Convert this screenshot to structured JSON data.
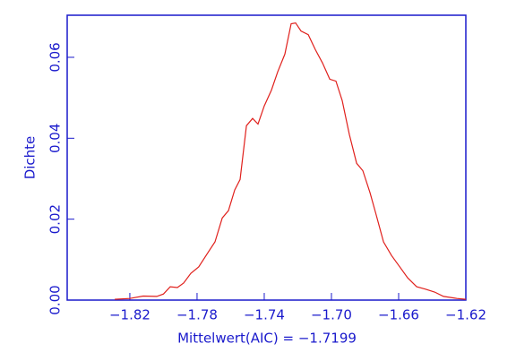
{
  "chart_data": {
    "type": "line",
    "x_label": "Mittelwert(AIC) = −1.7199",
    "y_label": "Dichte",
    "xlim": [
      -1.8573,
      -1.62
    ],
    "ylim": [
      0,
      0.0704
    ],
    "xticks": [
      {
        "value": -1.82,
        "label": "−1.82"
      },
      {
        "value": -1.78,
        "label": "−1.78"
      },
      {
        "value": -1.74,
        "label": "−1.74"
      },
      {
        "value": -1.7,
        "label": "−1.70"
      },
      {
        "value": -1.66,
        "label": "−1.66"
      },
      {
        "value": -1.62,
        "label": "−1.62"
      }
    ],
    "yticks": [
      {
        "value": 0,
        "label": "0.00"
      },
      {
        "value": 0.02,
        "label": "0.02"
      },
      {
        "value": 0.04,
        "label": "0.04"
      },
      {
        "value": 0.06,
        "label": "0.06"
      }
    ],
    "axis_color": "#1a1acc",
    "series": [
      {
        "color": "#e0201c",
        "x": [
          -1.829,
          -1.82,
          -1.812,
          -1.804,
          -1.8,
          -1.796,
          -1.7917,
          -1.788,
          -1.7837,
          -1.779,
          -1.7736,
          -1.7693,
          -1.765,
          -1.7613,
          -1.7576,
          -1.7544,
          -1.7506,
          -1.7469,
          -1.7437,
          -1.74,
          -1.7357,
          -1.732,
          -1.7277,
          -1.724,
          -1.7213,
          -1.7181,
          -1.7138,
          -1.7096,
          -1.7053,
          -1.701,
          -1.6973,
          -1.6936,
          -1.6893,
          -1.685,
          -1.6813,
          -1.677,
          -1.6733,
          -1.669,
          -1.6642,
          -1.66,
          -1.6546,
          -1.6493,
          -1.644,
          -1.6386,
          -1.6333,
          -1.6253,
          -1.62
        ],
        "values": [
          0.0002,
          0.0004,
          0.001,
          0.0009,
          0.0015,
          0.0033,
          0.0031,
          0.0042,
          0.0066,
          0.0082,
          0.0117,
          0.0144,
          0.0203,
          0.0221,
          0.0272,
          0.0298,
          0.0431,
          0.0449,
          0.0435,
          0.048,
          0.0519,
          0.0564,
          0.0608,
          0.0683,
          0.0685,
          0.0665,
          0.0656,
          0.0619,
          0.0586,
          0.0546,
          0.0541,
          0.0493,
          0.0409,
          0.0338,
          0.032,
          0.0265,
          0.021,
          0.0144,
          0.011,
          0.0086,
          0.0055,
          0.0033,
          0.0027,
          0.002,
          0.0009,
          0.0004,
          0.0002
        ]
      }
    ]
  }
}
